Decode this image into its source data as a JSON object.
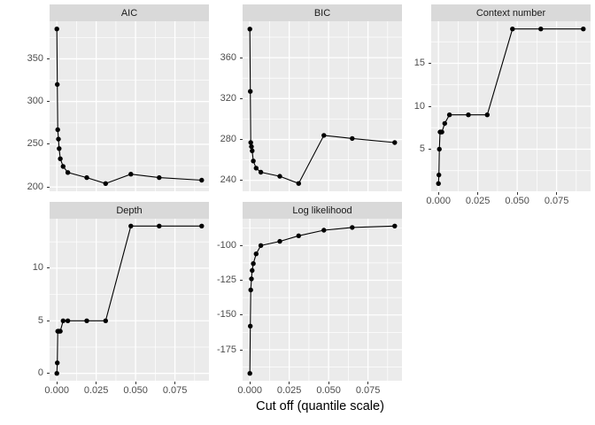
{
  "figure": {
    "background": "#FFFFFF",
    "panel_background": "#EBEBEB",
    "strip_background": "#D9D9D9",
    "grid_color": "#FFFFFF",
    "series_color": "#000000",
    "axis_text_color": "#4D4D4D",
    "strip_text_color": "#1A1A1A",
    "tick_color": "#333333",
    "x_axis_title": "Cut off (quantile scale)",
    "legend": "none",
    "grid": "on"
  },
  "chart_data": [
    {
      "type": "line",
      "title": "AIC",
      "x": [
        0,
        0.0003,
        0.0006,
        0.001,
        0.0015,
        0.0022,
        0.004,
        0.007,
        0.019,
        0.031,
        0.047,
        0.065,
        0.092
      ],
      "y": [
        385,
        320,
        267,
        256,
        245,
        233,
        224,
        217,
        211,
        204,
        215,
        211,
        208
      ],
      "ylim": [
        195,
        394
      ],
      "yticks": [
        350,
        300,
        250,
        200
      ],
      "xlim": [
        -0.0046,
        0.0966
      ],
      "xticks": [
        0,
        0.025,
        0.05,
        0.075
      ],
      "xtick_labels": [
        "0.000",
        "0.025",
        "0.050",
        "0.075"
      ],
      "xlabel": "Cut off (quantile scale)",
      "show_x_axis": false
    },
    {
      "type": "line",
      "title": "BIC",
      "x": [
        0,
        0.0003,
        0.0006,
        0.001,
        0.0015,
        0.0022,
        0.004,
        0.007,
        0.019,
        0.031,
        0.047,
        0.065,
        0.092
      ],
      "y": [
        388,
        327,
        277,
        273,
        269,
        259,
        252,
        248,
        244,
        237,
        284,
        281,
        277
      ],
      "ylim": [
        229.4,
        395.6
      ],
      "yticks": [
        360,
        320,
        280,
        240
      ],
      "xlim": [
        -0.0046,
        0.0966
      ],
      "xticks": [
        0,
        0.025,
        0.05,
        0.075
      ],
      "xtick_labels": [
        "0.000",
        "0.025",
        "0.050",
        "0.075"
      ],
      "xlabel": "Cut off (quantile scale)",
      "show_x_axis": false
    },
    {
      "type": "line",
      "title": "Context number",
      "x": [
        0,
        0.0003,
        0.0006,
        0.001,
        0.0015,
        0.0022,
        0.004,
        0.007,
        0.019,
        0.031,
        0.047,
        0.065,
        0.092
      ],
      "y": [
        1,
        2,
        5,
        7,
        7,
        7,
        8,
        9,
        9,
        9,
        19,
        19,
        19
      ],
      "ylim": [
        0.1,
        19.9
      ],
      "yticks": [
        15,
        10,
        5
      ],
      "xlim": [
        -0.0046,
        0.0966
      ],
      "xticks": [
        0,
        0.025,
        0.05,
        0.075
      ],
      "xtick_labels": [
        "0.000",
        "0.025",
        "0.050",
        "0.075"
      ],
      "xlabel": "Cut off (quantile scale)",
      "show_x_axis": true
    },
    {
      "type": "line",
      "title": "Depth",
      "x": [
        0,
        0.0003,
        0.0006,
        0.001,
        0.0015,
        0.0022,
        0.004,
        0.007,
        0.019,
        0.031,
        0.047,
        0.065,
        0.092
      ],
      "y": [
        0,
        1,
        4,
        4,
        4,
        4,
        5,
        5,
        5,
        5,
        14,
        14,
        14
      ],
      "ylim": [
        -0.7,
        14.7
      ],
      "yticks": [
        10,
        5,
        0
      ],
      "xlim": [
        -0.0046,
        0.0966
      ],
      "xticks": [
        0,
        0.025,
        0.05,
        0.075
      ],
      "xtick_labels": [
        "0.000",
        "0.025",
        "0.050",
        "0.075"
      ],
      "xlabel": "Cut off (quantile scale)",
      "show_x_axis": true
    },
    {
      "type": "line",
      "title": "Log likelihood",
      "x": [
        0,
        0.0003,
        0.0006,
        0.001,
        0.0015,
        0.0022,
        0.004,
        0.007,
        0.019,
        0.031,
        0.047,
        0.065,
        0.092
      ],
      "y": [
        -192,
        -158,
        -132,
        -124,
        -118,
        -113,
        -106,
        -100,
        -97,
        -93,
        -89,
        -87,
        -86
      ],
      "ylim": [
        -197.3,
        -80.7
      ],
      "yticks": [
        -100,
        -125,
        -150,
        -175
      ],
      "xlim": [
        -0.0046,
        0.0966
      ],
      "xticks": [
        0,
        0.025,
        0.05,
        0.075
      ],
      "xtick_labels": [
        "0.000",
        "0.025",
        "0.050",
        "0.075"
      ],
      "xlabel": "Cut off (quantile scale)",
      "show_x_axis": true
    }
  ]
}
